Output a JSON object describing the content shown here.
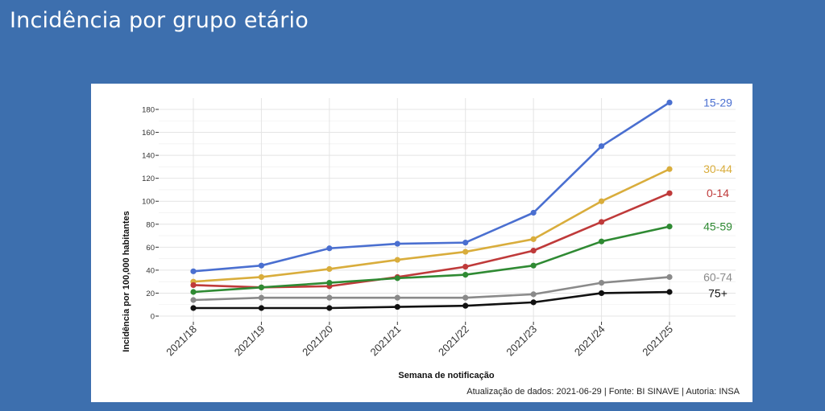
{
  "slide": {
    "title": "Incidência por grupo etário"
  },
  "chart": {
    "caption": "Atualização de dados: 2021-06-29 | Fonte: BI SINAVE | Autoria: INSA"
  },
  "chart_data": {
    "type": "line",
    "title": "",
    "xlabel": "Semana de notificação",
    "ylabel": "Incidência por 100,000 habitantes",
    "x": [
      "2021/18",
      "2021/19",
      "2021/20",
      "2021/21",
      "2021/22",
      "2021/23",
      "2021/24",
      "2021/25"
    ],
    "ylim": [
      0,
      180
    ],
    "yticks": [
      0,
      20,
      40,
      60,
      80,
      100,
      120,
      140,
      160,
      180
    ],
    "grid": true,
    "legend": "direct labels right",
    "series": [
      {
        "name": "15-29",
        "color": "#4a6fd0",
        "values": [
          39,
          44,
          59,
          63,
          64,
          90,
          148,
          186
        ]
      },
      {
        "name": "30-44",
        "color": "#d9ad3c",
        "values": [
          30,
          34,
          41,
          49,
          56,
          67,
          100,
          128
        ]
      },
      {
        "name": "0-14",
        "color": "#bf3a3a",
        "values": [
          27,
          25,
          26,
          34,
          43,
          57,
          82,
          107
        ]
      },
      {
        "name": "45-59",
        "color": "#2f8a33",
        "values": [
          21,
          25,
          29,
          33,
          36,
          44,
          65,
          78
        ]
      },
      {
        "name": "60-74",
        "color": "#8a8a8a",
        "values": [
          14,
          16,
          16,
          16,
          16,
          19,
          29,
          34
        ]
      },
      {
        "name": "75+",
        "color": "#111111",
        "values": [
          7,
          7,
          7,
          8,
          9,
          12,
          20,
          21
        ]
      }
    ]
  }
}
